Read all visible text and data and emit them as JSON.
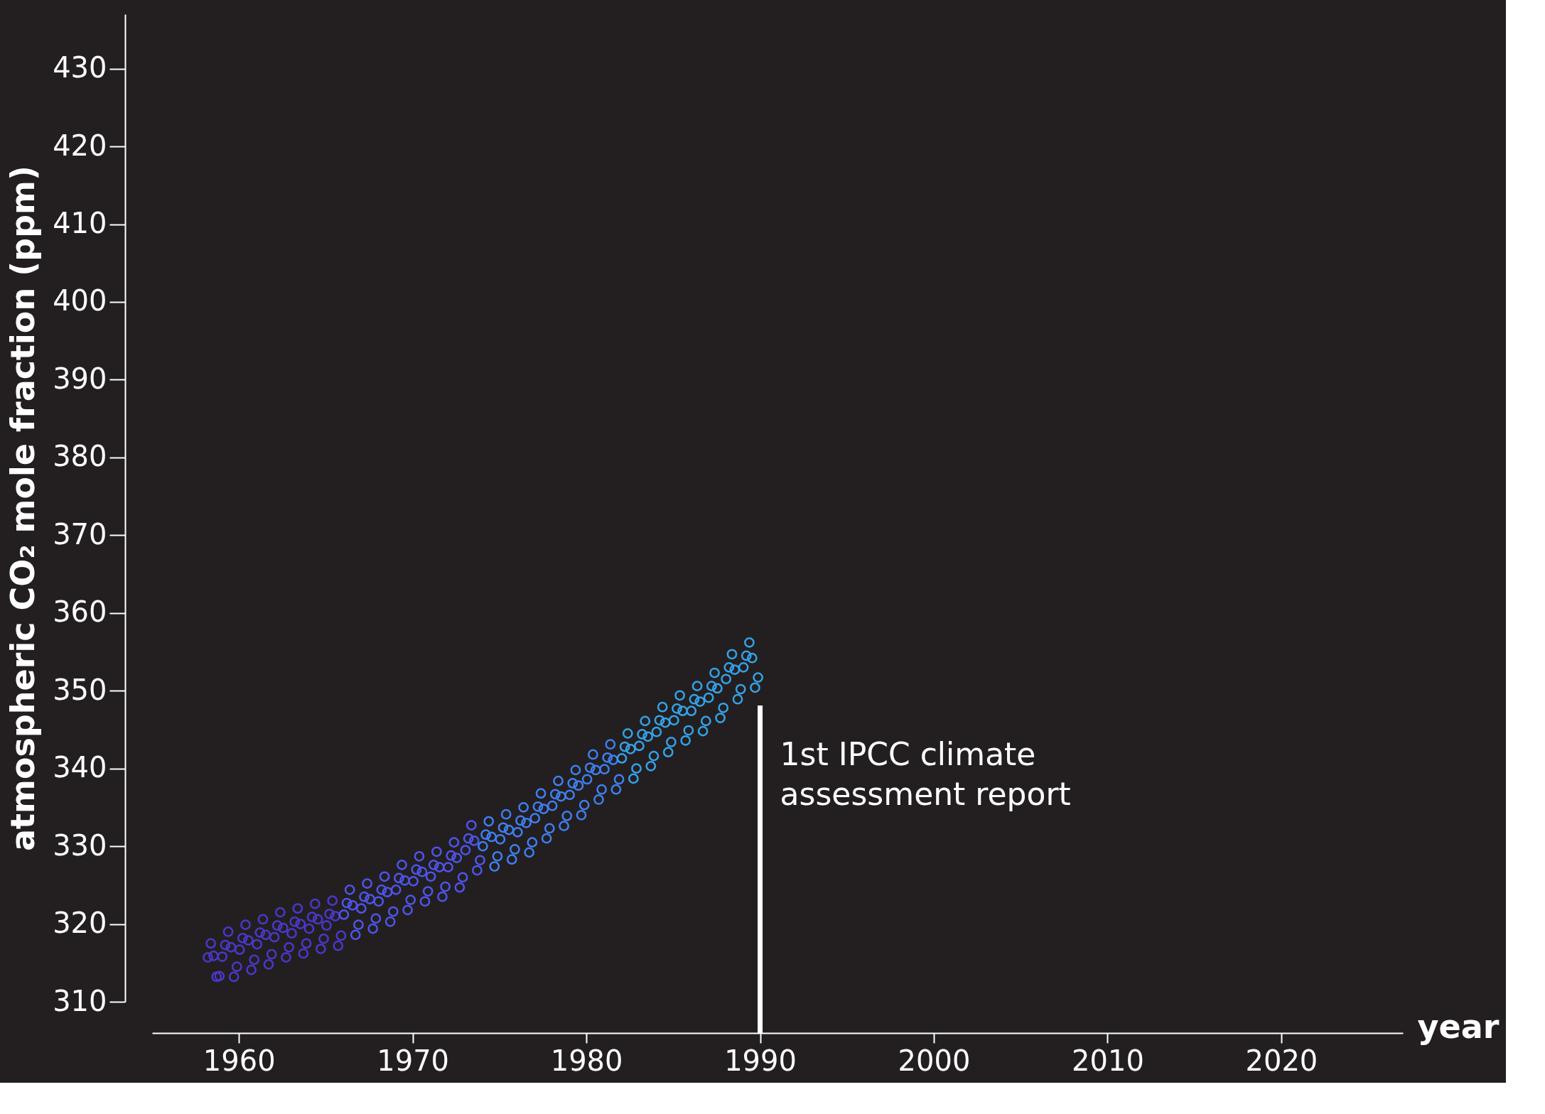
{
  "chart_data": {
    "type": "scatter",
    "xlabel": "year",
    "ylabel": "atmospheric CO₂ mole fraction (ppm)",
    "xlim": [
      1955,
      2027
    ],
    "ylim": [
      310,
      437
    ],
    "xticks": [
      1960,
      1970,
      1980,
      1990,
      2000,
      2010,
      2020
    ],
    "yticks": [
      310,
      320,
      330,
      340,
      350,
      360,
      370,
      380,
      390,
      400,
      410,
      420,
      430
    ],
    "grid": false,
    "legend": false,
    "marker": "circle",
    "series": [
      {
        "color": "#4a38cc",
        "x": [
          1958.21,
          1958.38,
          1958.54,
          1958.71,
          1958.88,
          1959.04,
          1959.21,
          1959.38,
          1959.54,
          1959.71,
          1959.88,
          1960.04,
          1960.21,
          1960.38,
          1960.54,
          1960.71,
          1960.88,
          1961.04,
          1961.21,
          1961.38,
          1961.54,
          1961.71,
          1961.88,
          1962.04,
          1962.21,
          1962.38,
          1962.54,
          1962.71,
          1962.88,
          1963.04,
          1963.21,
          1963.38,
          1963.54,
          1963.71,
          1963.88,
          1964.04,
          1964.21,
          1964.38,
          1964.54,
          1964.71,
          1964.88,
          1965.04,
          1965.21,
          1965.38,
          1965.54,
          1965.71,
          1965.88
        ],
        "values": [
          315.7,
          317.5,
          315.9,
          313.2,
          313.3,
          315.8,
          317.3,
          319.0,
          317.0,
          313.2,
          314.5,
          316.7,
          318.2,
          319.9,
          317.9,
          314.1,
          315.4,
          317.4,
          318.9,
          320.6,
          318.6,
          314.8,
          316.1,
          318.3,
          319.8,
          321.5,
          319.5,
          315.7,
          317.0,
          318.8,
          320.3,
          322.0,
          320.0,
          316.2,
          317.5,
          319.4,
          320.9,
          322.6,
          320.6,
          316.8,
          318.1,
          319.8,
          321.3,
          323.0,
          321.0,
          317.2,
          318.5
        ]
      },
      {
        "color": "#4d55ec",
        "x": [
          1966.04,
          1966.21,
          1966.38,
          1966.54,
          1966.71,
          1966.88,
          1967.04,
          1967.21,
          1967.38,
          1967.54,
          1967.71,
          1967.88,
          1968.04,
          1968.21,
          1968.38,
          1968.54,
          1968.71,
          1968.88,
          1969.04,
          1969.21,
          1969.38,
          1969.54,
          1969.71,
          1969.88,
          1970.04,
          1970.21,
          1970.38,
          1970.54,
          1970.71,
          1970.88,
          1971.04,
          1971.21,
          1971.38,
          1971.54,
          1971.71,
          1971.88,
          1972.04,
          1972.21,
          1972.38,
          1972.54,
          1972.71,
          1972.88,
          1973.04,
          1973.21,
          1973.38,
          1973.54,
          1973.71,
          1973.88
        ],
        "values": [
          321.2,
          322.7,
          324.4,
          322.4,
          318.6,
          319.9,
          322.0,
          323.5,
          325.2,
          323.2,
          319.4,
          320.7,
          322.9,
          324.4,
          326.1,
          324.1,
          320.3,
          321.6,
          324.4,
          325.9,
          327.6,
          325.6,
          321.8,
          323.1,
          325.5,
          327.0,
          328.7,
          326.7,
          322.9,
          324.2,
          326.1,
          327.6,
          329.3,
          327.3,
          323.5,
          324.8,
          327.3,
          328.8,
          330.5,
          328.5,
          324.7,
          326.0,
          329.5,
          331.0,
          332.7,
          330.7,
          326.9,
          328.2
        ]
      },
      {
        "color": "#3f7ff0",
        "x": [
          1974.04,
          1974.21,
          1974.38,
          1974.54,
          1974.71,
          1974.88,
          1975.04,
          1975.21,
          1975.38,
          1975.54,
          1975.71,
          1975.88,
          1976.04,
          1976.21,
          1976.38,
          1976.54,
          1976.71,
          1976.88,
          1977.04,
          1977.21,
          1977.38,
          1977.54,
          1977.71,
          1977.88,
          1978.04,
          1978.21,
          1978.38,
          1978.54,
          1978.71,
          1978.88,
          1979.04,
          1979.21,
          1979.38,
          1979.54,
          1979.71,
          1979.88,
          1980.04,
          1980.21,
          1980.38,
          1980.54,
          1980.71,
          1980.88,
          1981.04,
          1981.21,
          1981.38,
          1981.54,
          1981.71,
          1981.88
        ],
        "values": [
          330.0,
          331.5,
          333.2,
          331.2,
          327.4,
          328.7,
          330.9,
          332.4,
          334.1,
          332.1,
          328.3,
          329.6,
          331.8,
          333.3,
          335.0,
          333.0,
          329.2,
          330.5,
          333.6,
          335.1,
          336.8,
          334.8,
          331.0,
          332.3,
          335.2,
          336.7,
          338.4,
          336.4,
          332.6,
          333.9,
          336.6,
          338.1,
          339.8,
          337.8,
          334.0,
          335.3,
          338.6,
          340.1,
          341.8,
          339.8,
          336.0,
          337.3,
          339.9,
          341.4,
          343.1,
          341.1,
          337.3,
          338.6
        ]
      },
      {
        "color": "#35a2e8",
        "x": [
          1982.04,
          1982.21,
          1982.38,
          1982.54,
          1982.71,
          1982.88,
          1983.04,
          1983.21,
          1983.38,
          1983.54,
          1983.71,
          1983.88,
          1984.04,
          1984.21,
          1984.38,
          1984.54,
          1984.71,
          1984.88,
          1985.04,
          1985.21,
          1985.38,
          1985.54,
          1985.71,
          1985.88,
          1986.04,
          1986.21,
          1986.38,
          1986.54,
          1986.71,
          1986.88,
          1987.04,
          1987.21,
          1987.38,
          1987.54,
          1987.71,
          1987.88,
          1988.04,
          1988.21,
          1988.38,
          1988.54,
          1988.71,
          1988.88,
          1989.04,
          1989.21,
          1989.38,
          1989.54,
          1989.71,
          1989.88
        ],
        "values": [
          341.3,
          342.8,
          344.5,
          342.5,
          338.7,
          340.0,
          342.9,
          344.4,
          346.1,
          344.1,
          340.3,
          341.6,
          344.7,
          346.2,
          347.9,
          345.9,
          342.1,
          343.4,
          346.2,
          347.7,
          349.4,
          347.4,
          343.6,
          344.9,
          347.4,
          348.9,
          350.6,
          348.6,
          344.8,
          346.1,
          349.1,
          350.6,
          352.3,
          350.3,
          346.5,
          347.8,
          351.5,
          353.0,
          354.7,
          352.7,
          348.9,
          350.2,
          353.0,
          354.5,
          356.2,
          354.2,
          350.4,
          351.7
        ]
      }
    ],
    "ref_lines": [
      {
        "axis": "x",
        "value": 1990,
        "label": "1st IPCC climate\nassessment report",
        "color": "#ffffff"
      }
    ]
  }
}
